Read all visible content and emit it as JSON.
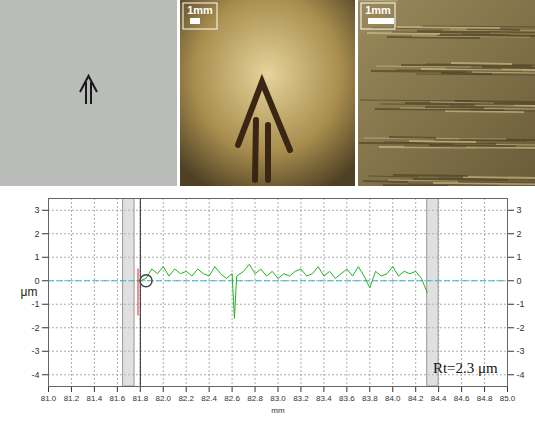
{
  "images": [
    {
      "scale_bar": null
    },
    {
      "scale_bar": "1mm"
    },
    {
      "scale_bar": "1mm"
    }
  ],
  "chart_data": {
    "type": "line",
    "x_label": "mm",
    "y_label": "μm",
    "xlim": [
      81.0,
      85.0
    ],
    "ylim": [
      -4.5,
      3.5
    ],
    "xticks": [
      {
        "value": 81,
        "label": "81.0"
      },
      81.2,
      81.4,
      81.6,
      81.8,
      {
        "value": 82,
        "label": "82.0"
      },
      82.2,
      82.4,
      82.6,
      82.8,
      {
        "value": 83,
        "label": "83.0"
      },
      83.2,
      83.4,
      83.6,
      83.8,
      {
        "value": 84,
        "label": "84.0"
      },
      84.2,
      84.4,
      84.6,
      84.8,
      {
        "value": 85,
        "label": "85.0"
      }
    ],
    "yticks": [
      -4,
      -3,
      -2,
      -1,
      0,
      1,
      2,
      3
    ],
    "grid": true,
    "color": "#22b422",
    "x": [
      81.8,
      81.85,
      81.9,
      81.95,
      82.0,
      82.05,
      82.1,
      82.15,
      82.2,
      82.25,
      82.3,
      82.35,
      82.4,
      82.45,
      82.5,
      82.55,
      82.6,
      82.62,
      82.64,
      82.7,
      82.75,
      82.8,
      82.85,
      82.9,
      82.95,
      83.0,
      83.05,
      83.1,
      83.15,
      83.2,
      83.25,
      83.3,
      83.35,
      83.4,
      83.45,
      83.5,
      83.55,
      83.6,
      83.65,
      83.7,
      83.75,
      83.8,
      83.85,
      83.9,
      83.95,
      84.0,
      84.05,
      84.1,
      84.15,
      84.2,
      84.25,
      84.3
    ],
    "values": [
      0,
      0.1,
      0.5,
      0.3,
      0.6,
      0.2,
      0.5,
      0.3,
      0.4,
      0.2,
      0.5,
      0.3,
      0.2,
      0.6,
      0.3,
      0.1,
      0.3,
      -1.6,
      0.2,
      0.4,
      0.7,
      0.3,
      0.5,
      0.2,
      0.4,
      0.1,
      0.3,
      0.2,
      0.4,
      0.5,
      0.2,
      0.3,
      0.6,
      0.2,
      0.4,
      0.1,
      0.3,
      0.5,
      0.2,
      0.6,
      0.2,
      -0.3,
      0.4,
      0.2,
      0.3,
      0.6,
      0.2,
      0.4,
      0.3,
      0.4,
      0.1,
      -0.5
    ],
    "reference_line": 0,
    "evaluation_bands": [
      [
        81.65,
        81.75
      ],
      [
        84.3,
        84.4
      ]
    ],
    "cursor_x": 81.8,
    "red_mark": {
      "x": 81.78,
      "y": [
        -1.5,
        0.5
      ]
    },
    "circle": [
      81.85,
      0
    ],
    "annotations": [
      {
        "text": "Rt=2.3 μm",
        "x": 84.95,
        "y": -3.7
      }
    ]
  }
}
